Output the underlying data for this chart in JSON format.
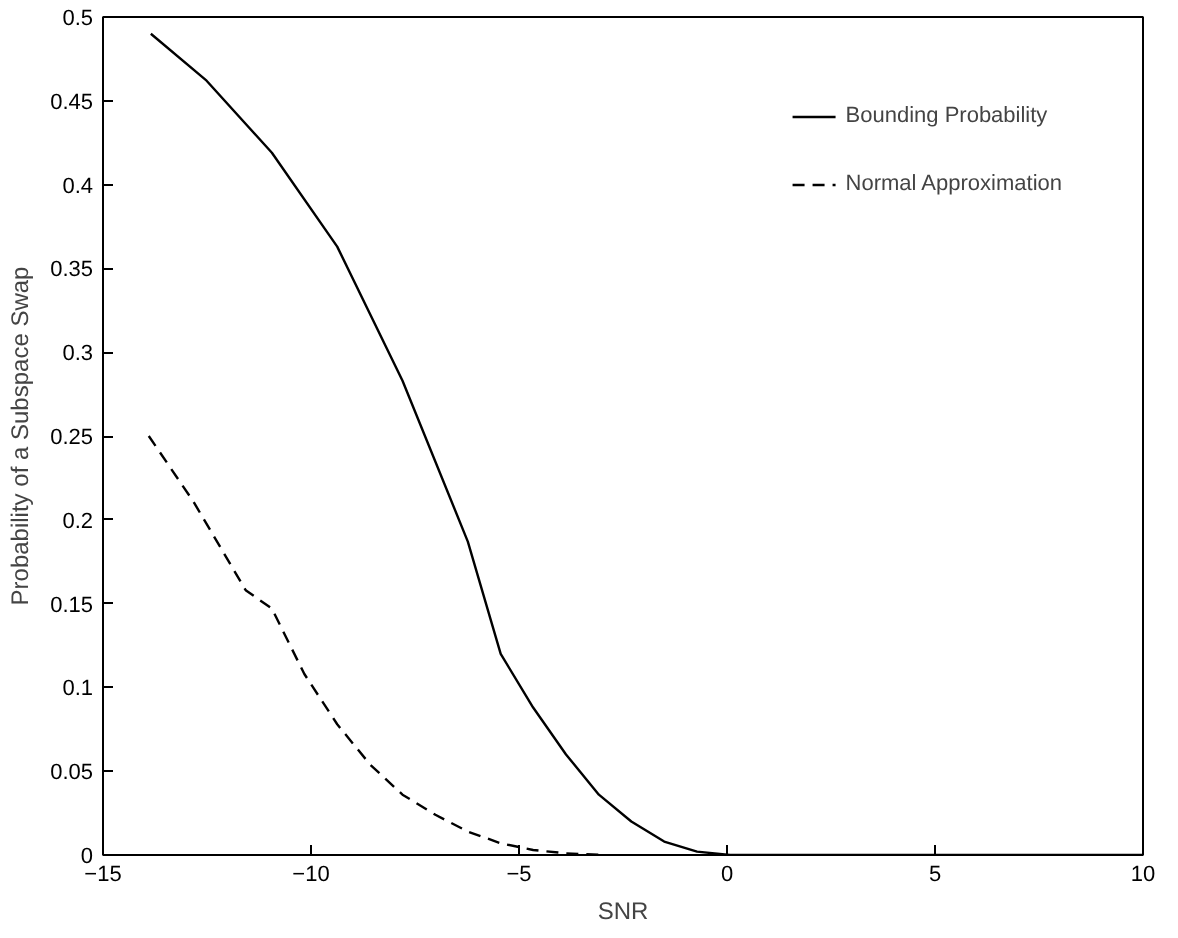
{
  "chart_data": {
    "type": "line",
    "xlabel": "SNR",
    "ylabel": "Probability of a Subspace Swap",
    "xlim": [
      -15,
      10
    ],
    "xticks": [
      -15,
      -10,
      -5,
      0,
      5,
      10
    ],
    "ylim": [
      0,
      0.5
    ],
    "yticks": [
      0,
      0.05,
      0.1,
      0.15,
      0.2,
      0.25,
      0.3,
      0.35,
      0.4,
      0.45,
      0.5
    ],
    "grid": false,
    "legend": "top right",
    "marker": "none",
    "series": [
      {
        "name": "Bounding Probability",
        "color": "#000000",
        "line_style": "solid",
        "x": [
          -13.85,
          -12.51,
          -10.94,
          -9.37,
          -7.8,
          -6.23,
          -5.44,
          -4.66,
          -3.87,
          -3.08,
          -2.3,
          -1.51,
          -0.72,
          0.07,
          2,
          5,
          10
        ],
        "values": [
          0.49,
          0.462,
          0.419,
          0.363,
          0.283,
          0.187,
          0.12,
          0.088,
          0.06,
          0.036,
          0.02,
          0.008,
          0.002,
          0,
          0,
          0,
          0
        ]
      },
      {
        "name": "Normal Approximation",
        "color": "#000000",
        "line_style": "dashed",
        "x": [
          -13.9,
          -12.83,
          -11.57,
          -10.94,
          -10.16,
          -9.37,
          -8.58,
          -7.8,
          -7.01,
          -6.23,
          -5.44,
          -4.66,
          -3.87,
          -3
        ],
        "values": [
          0.25,
          0.211,
          0.158,
          0.147,
          0.108,
          0.078,
          0.054,
          0.036,
          0.024,
          0.014,
          0.007,
          0.003,
          0.001,
          0
        ]
      }
    ]
  }
}
